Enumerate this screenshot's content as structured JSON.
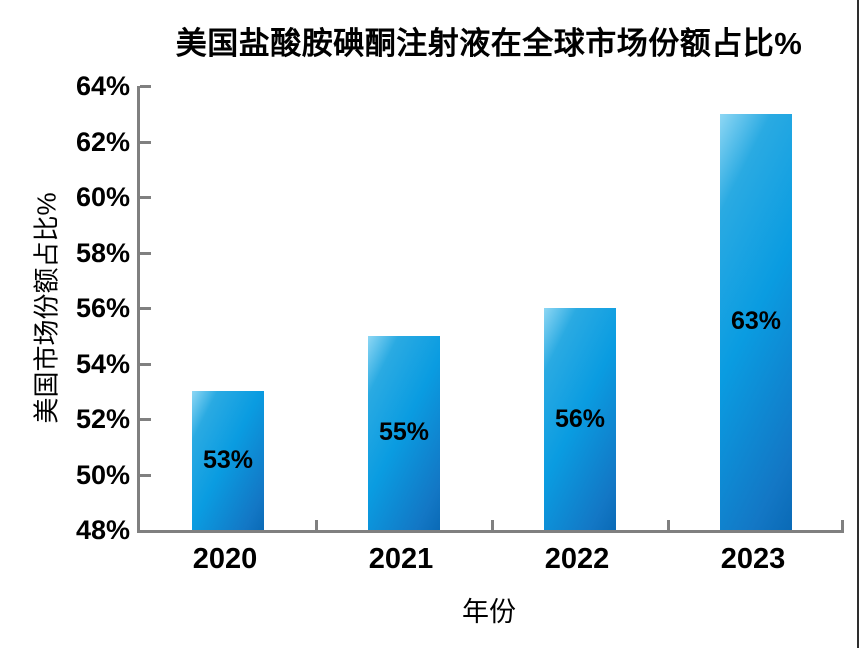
{
  "title": "美国盐酸胺碘酮注射液在全球市场份额占比%",
  "chart_data": {
    "type": "bar",
    "title": "美国盐酸胺碘酮注射液在全球市场份额占比%",
    "categories": [
      "2020",
      "2021",
      "2022",
      "2023"
    ],
    "values": [
      53,
      55,
      56,
      63
    ],
    "data_labels": [
      "53%",
      "55%",
      "56%",
      "63%"
    ],
    "xlabel": "年份",
    "ylabel": "美国市场份额占比%",
    "ylim": [
      48,
      64
    ],
    "ytick_step": 2,
    "ytick_labels": [
      "48%",
      "50%",
      "52%",
      "54%",
      "56%",
      "58%",
      "60%",
      "62%",
      "64%"
    ],
    "grid": false,
    "legend": false,
    "layout_hints": {
      "data_label_position": "center-inside",
      "ticks": "inward",
      "tick_placement_x": "between-categories"
    },
    "colors": {
      "bar_gradient_light": "#8ed7f4",
      "bar_gradient_mid": "#0a9ce1",
      "bar_gradient_dark": "#0a6ab6",
      "axis": "#808080",
      "text": "#000000",
      "background": "#ffffff",
      "page_edge_line": "#2e2e2e"
    }
  }
}
